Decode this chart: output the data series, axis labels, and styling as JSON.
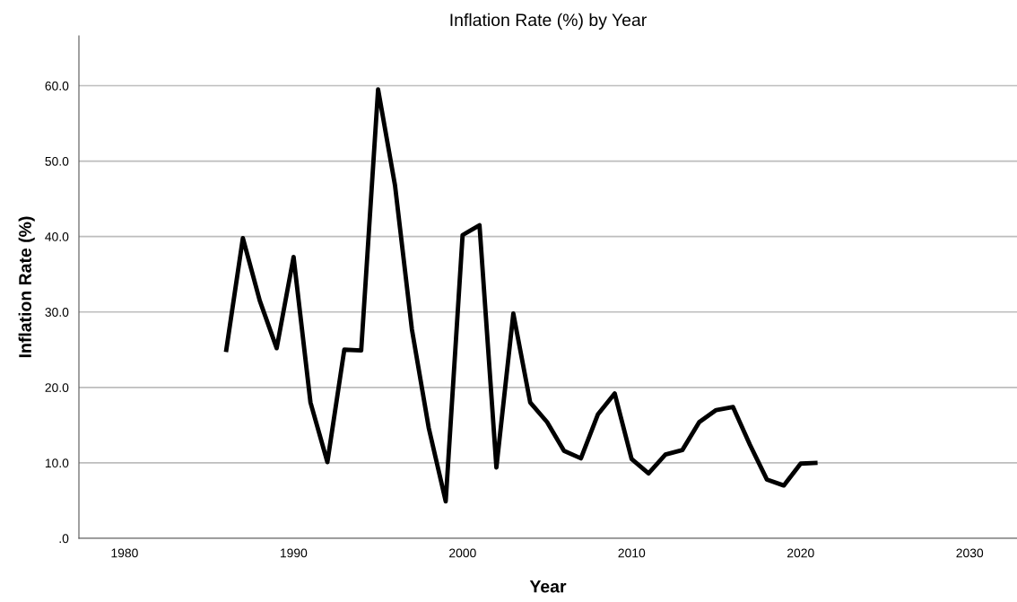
{
  "chart_data": {
    "type": "line",
    "title": "Inflation Rate (%) by Year",
    "xlabel": "Year",
    "ylabel": "Inflation Rate (%)",
    "x": [
      1986,
      1987,
      1988,
      1989,
      1990,
      1991,
      1992,
      1993,
      1994,
      1995,
      1996,
      1997,
      1998,
      1999,
      2000,
      2001,
      2002,
      2003,
      2004,
      2005,
      2006,
      2007,
      2008,
      2009,
      2010,
      2011,
      2012,
      2013,
      2014,
      2015,
      2016,
      2017,
      2018,
      2019,
      2020,
      2021
    ],
    "series": [
      {
        "color": "#000000",
        "values": [
          24.7,
          39.8,
          31.5,
          25.2,
          37.3,
          18.0,
          10.1,
          25.0,
          24.9,
          59.5,
          46.8,
          27.7,
          14.6,
          4.9,
          40.2,
          41.5,
          9.4,
          29.8,
          18.0,
          15.4,
          11.6,
          10.6,
          16.4,
          19.2,
          10.5,
          8.6,
          11.1,
          11.7,
          15.4,
          17.0,
          17.4,
          12.4,
          7.8,
          7.0,
          9.9,
          10.0
        ]
      }
    ],
    "xlim": [
      1977.3,
      2032.8
    ],
    "xticks": [
      1980,
      1990,
      2000,
      2010,
      2020,
      2030
    ],
    "ylim": [
      0,
      66.6
    ],
    "yticks": [
      {
        "value": 0,
        "label": ".0"
      },
      {
        "value": 10,
        "label": "10.0"
      },
      {
        "value": 20,
        "label": "20.0"
      },
      {
        "value": 30,
        "label": "30.0"
      },
      {
        "value": 40,
        "label": "40.0"
      },
      {
        "value": 50,
        "label": "50.0"
      },
      {
        "value": 60,
        "label": "60.0"
      }
    ],
    "grid": "y",
    "marker": "none",
    "line_style": "solid",
    "legend": false
  }
}
